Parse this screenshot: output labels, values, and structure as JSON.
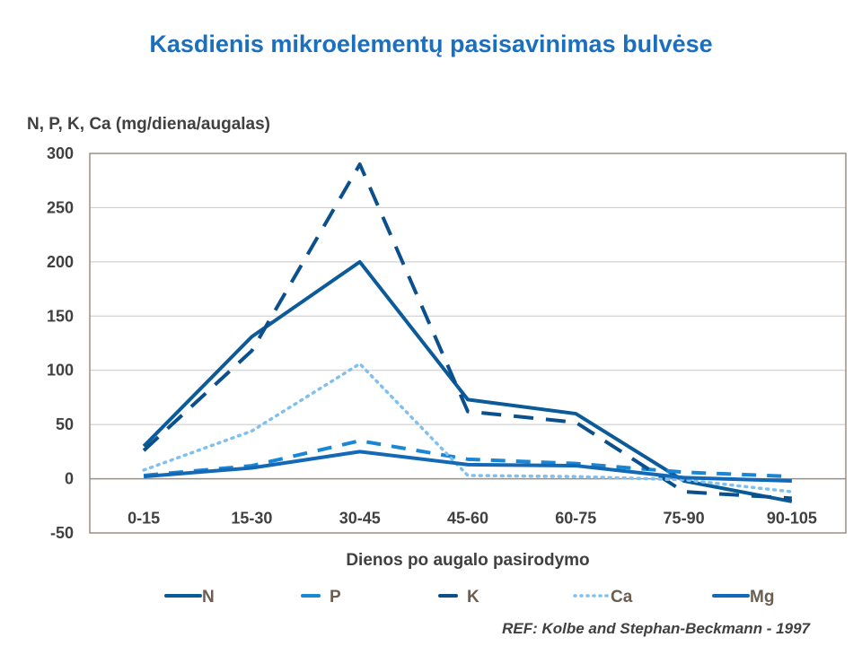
{
  "chart_data": {
    "type": "line",
    "title": "Kasdienis mikroelementų pasisavinimas bulvėse",
    "ylabel": "N, P, K, Ca (mg/diena/augalas)",
    "xlabel": "Dienos po augalo pasirodymo",
    "categories": [
      "0-15",
      "15-30",
      "30-45",
      "45-60",
      "60-75",
      "75-90",
      "90-105"
    ],
    "ylim": [
      -50,
      300
    ],
    "yticks": [
      -50,
      0,
      50,
      100,
      150,
      200,
      250,
      300
    ],
    "grid": true,
    "legend": "bottom",
    "series": [
      {
        "name": "N",
        "color": "#0b5a9a",
        "style": "solid",
        "values": [
          30,
          131,
          200,
          73,
          60,
          -2,
          -21
        ]
      },
      {
        "name": "P",
        "color": "#1a86d6",
        "style": "dashed",
        "values": [
          3,
          12,
          35,
          18,
          14,
          6,
          2
        ]
      },
      {
        "name": "K",
        "color": "#0b4f8c",
        "style": "longdash",
        "values": [
          26,
          118,
          290,
          62,
          52,
          -12,
          -18
        ]
      },
      {
        "name": "Ca",
        "color": "#7fc0ee",
        "style": "dotted",
        "values": [
          8,
          44,
          106,
          3,
          2,
          -1,
          -12
        ]
      },
      {
        "name": "Mg",
        "color": "#1469b6",
        "style": "solid",
        "values": [
          2,
          10,
          25,
          13,
          12,
          1,
          -2
        ]
      }
    ]
  },
  "reference": "REF: Kolbe and Stephan-Beckmann - 1997"
}
